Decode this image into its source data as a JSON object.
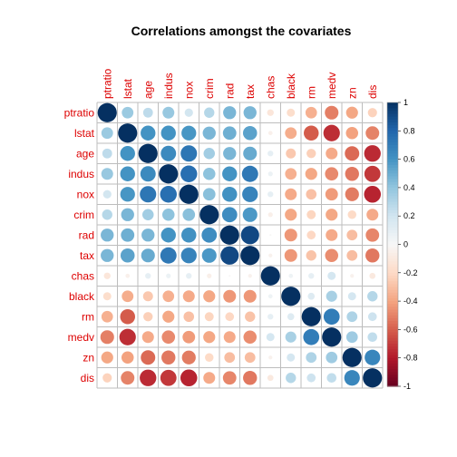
{
  "chart_data": {
    "type": "heatmap",
    "title": "Correlations amongst the covariates",
    "variables": [
      "ptratio",
      "lstat",
      "age",
      "indus",
      "nox",
      "crim",
      "rad",
      "tax",
      "chas",
      "black",
      "rm",
      "medv",
      "zn",
      "dis"
    ],
    "matrix": [
      [
        1.0,
        0.37,
        0.26,
        0.38,
        0.19,
        0.29,
        0.46,
        0.46,
        -0.12,
        -0.18,
        -0.36,
        -0.51,
        -0.39,
        -0.23
      ],
      [
        0.37,
        1.0,
        0.6,
        0.6,
        0.59,
        0.46,
        0.49,
        0.54,
        -0.05,
        -0.37,
        -0.61,
        -0.74,
        -0.41,
        -0.5
      ],
      [
        0.26,
        0.6,
        1.0,
        0.64,
        0.73,
        0.35,
        0.46,
        0.51,
        0.09,
        -0.27,
        -0.24,
        -0.38,
        -0.57,
        -0.75
      ],
      [
        0.38,
        0.6,
        0.64,
        1.0,
        0.76,
        0.41,
        0.6,
        0.72,
        0.06,
        -0.36,
        -0.39,
        -0.48,
        -0.53,
        -0.71
      ],
      [
        0.19,
        0.59,
        0.73,
        0.76,
        1.0,
        0.42,
        0.61,
        0.67,
        0.09,
        -0.38,
        -0.3,
        -0.43,
        -0.52,
        -0.77
      ],
      [
        0.29,
        0.46,
        0.35,
        0.41,
        0.42,
        1.0,
        0.63,
        0.58,
        -0.06,
        -0.39,
        -0.22,
        -0.39,
        -0.2,
        -0.38
      ],
      [
        0.46,
        0.49,
        0.46,
        0.6,
        0.61,
        0.63,
        1.0,
        0.91,
        -0.01,
        -0.44,
        -0.21,
        -0.38,
        -0.31,
        -0.49
      ],
      [
        0.46,
        0.54,
        0.51,
        0.72,
        0.67,
        0.58,
        0.91,
        1.0,
        -0.04,
        -0.44,
        -0.29,
        -0.47,
        -0.31,
        -0.53
      ],
      [
        -0.12,
        -0.05,
        0.09,
        0.06,
        0.09,
        -0.06,
        -0.01,
        -0.04,
        1.0,
        0.05,
        0.09,
        0.18,
        -0.04,
        -0.1
      ],
      [
        -0.18,
        -0.37,
        -0.27,
        -0.36,
        -0.38,
        -0.39,
        -0.44,
        -0.44,
        0.05,
        1.0,
        0.13,
        0.33,
        0.18,
        0.29
      ],
      [
        -0.36,
        -0.61,
        -0.24,
        -0.39,
        -0.3,
        -0.22,
        -0.21,
        -0.29,
        0.09,
        0.13,
        1.0,
        0.7,
        0.31,
        0.21
      ],
      [
        -0.51,
        -0.74,
        -0.38,
        -0.48,
        -0.43,
        -0.39,
        -0.38,
        -0.47,
        0.18,
        0.33,
        0.7,
        1.0,
        0.36,
        0.25
      ],
      [
        -0.39,
        -0.41,
        -0.57,
        -0.53,
        -0.52,
        -0.2,
        -0.31,
        -0.31,
        -0.04,
        0.18,
        0.31,
        0.36,
        1.0,
        0.66
      ],
      [
        -0.23,
        -0.5,
        -0.75,
        -0.71,
        -0.77,
        -0.38,
        -0.49,
        -0.53,
        -0.1,
        0.29,
        0.21,
        0.25,
        0.66,
        1.0
      ]
    ],
    "colorbar": {
      "range": [
        -1,
        1
      ],
      "ticks": [
        "1",
        "0.8",
        "0.6",
        "0.4",
        "0.2",
        "0",
        "-0.2",
        "-0.4",
        "-0.6",
        "-0.8",
        "-1"
      ],
      "low_color": "#67001f",
      "mid_color": "#f7f7f7",
      "high_color": "#053061"
    },
    "label_color": "#dd0000",
    "grid": true,
    "legend_placement": "right"
  }
}
